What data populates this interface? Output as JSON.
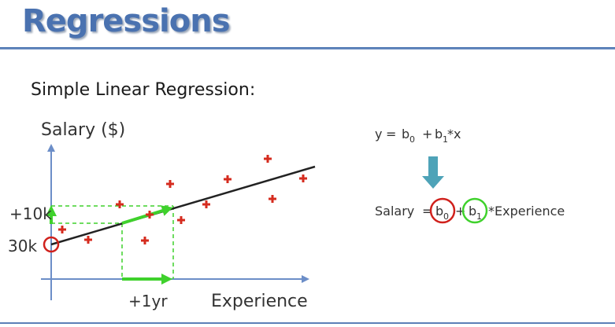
{
  "header": {
    "title": "Regressions"
  },
  "subtitle": "Simple Linear Regression:",
  "axes": {
    "y_label": "Salary ($)",
    "x_label": "Experience"
  },
  "annotations": {
    "delta_y": "+10k",
    "intercept": "30k",
    "delta_x": "+1yr"
  },
  "formula": {
    "general": {
      "y": "y",
      "eq": "=",
      "b0_base": "b",
      "b0_sub": "0",
      "plus": "+",
      "b1_base": "b",
      "b1_sub": "1",
      "x": "*x"
    },
    "specific": {
      "lhs": "Salary",
      "eq": "=",
      "b0_base": "b",
      "b0_sub": "0",
      "plus": "+",
      "b1_base": "b",
      "b1_sub": "1",
      "rhs": "*Experience"
    }
  },
  "colors": {
    "title": "#4a72b0",
    "axis": "#6c8ec8",
    "points": "#d52b1e",
    "line": "#222222",
    "green": "#3fd12c",
    "arrow": "#4ea3b8",
    "circle_red": "#d0211c"
  },
  "icons": {
    "points": "plus-marker",
    "arrow": "down-arrow-icon"
  }
}
